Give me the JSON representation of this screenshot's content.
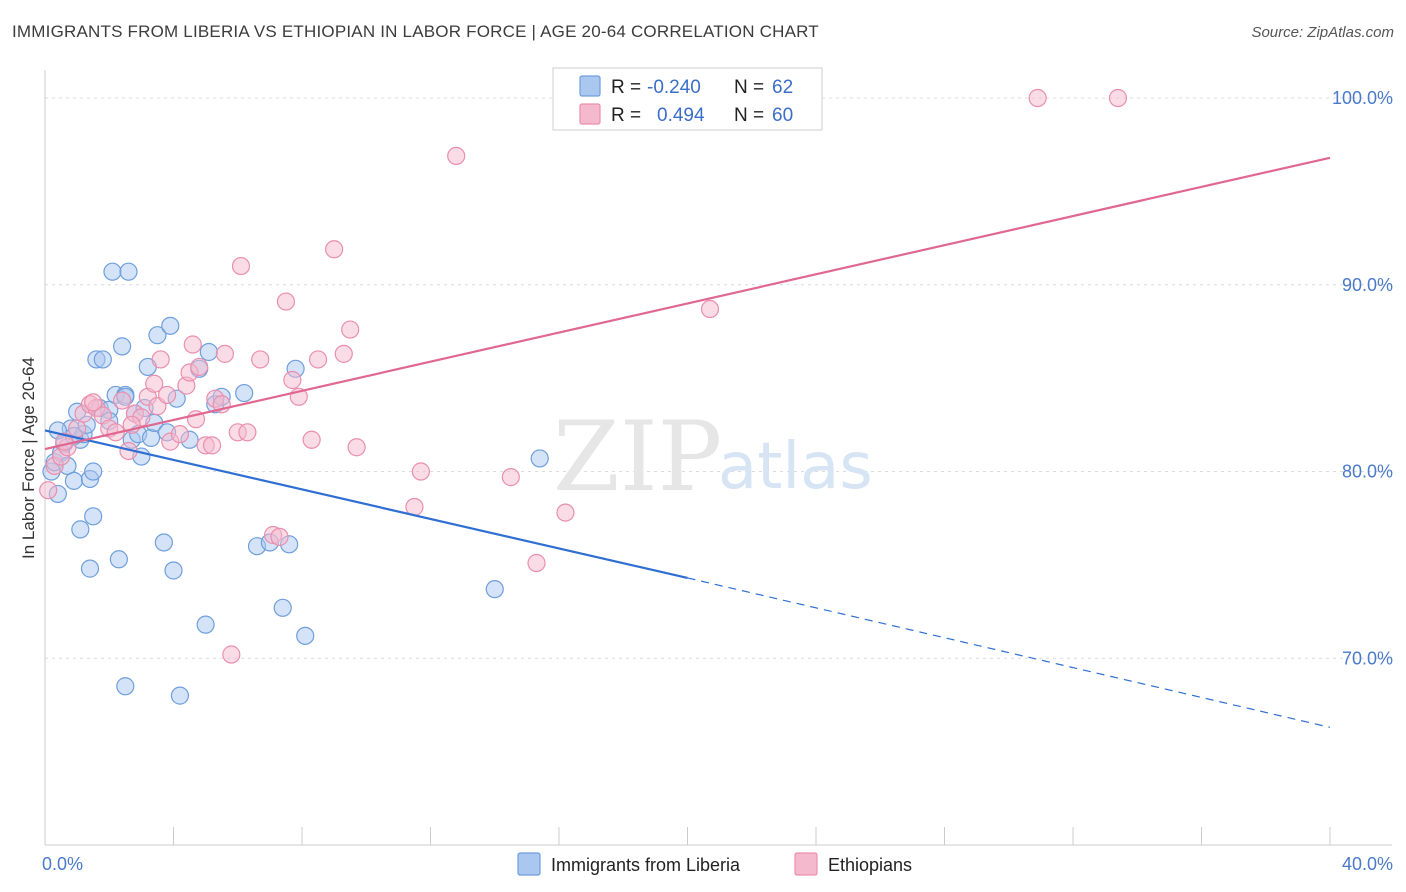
{
  "chart_data": {
    "type": "scatter",
    "title": "IMMIGRANTS FROM LIBERIA VS ETHIOPIAN IN LABOR FORCE | AGE 20-64 CORRELATION CHART",
    "source": "Source: ZipAtlas.com",
    "xlabel": "",
    "ylabel": "In Labor Force | Age 20-64",
    "xlim": [
      0,
      40
    ],
    "ylim": [
      60,
      101.5
    ],
    "x_tick_labels": [
      {
        "value": 0,
        "label": "0.0%"
      },
      {
        "value": 40,
        "label": "40.0%"
      }
    ],
    "y_tick_labels": [
      {
        "value": 70,
        "label": "70.0%"
      },
      {
        "value": 80,
        "label": "80.0%"
      },
      {
        "value": 90,
        "label": "90.0%"
      },
      {
        "value": 100,
        "label": "100.0%"
      }
    ],
    "watermark": {
      "part1": "ZIP",
      "part2": "atlas"
    },
    "legend": [
      {
        "name": "Immigrants from Liberia",
        "r_label": "R =",
        "r": "-0.240",
        "n_label": "N =",
        "n": "62"
      },
      {
        "name": "Ethiopians",
        "r_label": "R =",
        "r": "0.494",
        "n_label": "N =",
        "n": "60"
      }
    ],
    "colors": {
      "series1_fill": "#a9c7ef",
      "series1_stroke": "#6f9fdc",
      "series1_line": "#2f6fd2",
      "series2_fill": "#f5b9cd",
      "series2_stroke": "#e98fae",
      "series2_line": "#e06890",
      "grid": "#dcdcdc",
      "axis": "#cccccc"
    },
    "series": [
      {
        "name": "Immigrants from Liberia",
        "trend": {
          "x0": 0,
          "y0": 82.2,
          "x1": 20,
          "y1": 74.3,
          "x_dash_end": 40,
          "y_dash_end": 66.3
        },
        "points": [
          [
            0.2,
            80.0
          ],
          [
            0.3,
            80.5
          ],
          [
            0.4,
            78.8
          ],
          [
            0.5,
            81.0
          ],
          [
            0.6,
            81.5
          ],
          [
            0.7,
            80.3
          ],
          [
            0.8,
            82.3
          ],
          [
            0.9,
            79.5
          ],
          [
            1.0,
            83.2
          ],
          [
            1.1,
            81.7
          ],
          [
            1.2,
            82.0
          ],
          [
            1.3,
            82.5
          ],
          [
            1.4,
            79.6
          ],
          [
            1.5,
            80.0
          ],
          [
            1.6,
            86.0
          ],
          [
            1.7,
            83.4
          ],
          [
            1.8,
            86.0
          ],
          [
            2.0,
            83.3
          ],
          [
            2.1,
            90.7
          ],
          [
            2.2,
            84.1
          ],
          [
            2.3,
            75.3
          ],
          [
            2.4,
            86.7
          ],
          [
            2.5,
            84.1
          ],
          [
            2.6,
            90.7
          ],
          [
            2.7,
            81.7
          ],
          [
            2.8,
            83.1
          ],
          [
            2.9,
            82.0
          ],
          [
            3.0,
            80.8
          ],
          [
            3.1,
            83.4
          ],
          [
            3.2,
            85.6
          ],
          [
            3.3,
            81.8
          ],
          [
            3.4,
            82.6
          ],
          [
            3.5,
            87.3
          ],
          [
            3.7,
            76.2
          ],
          [
            3.8,
            82.1
          ],
          [
            3.9,
            87.8
          ],
          [
            4.0,
            74.7
          ],
          [
            4.1,
            83.9
          ],
          [
            4.2,
            68.0
          ],
          [
            4.5,
            81.7
          ],
          [
            4.8,
            85.5
          ],
          [
            5.0,
            71.8
          ],
          [
            5.1,
            86.4
          ],
          [
            5.3,
            83.6
          ],
          [
            5.5,
            84.0
          ],
          [
            6.2,
            84.2
          ],
          [
            6.6,
            76.0
          ],
          [
            7.0,
            76.2
          ],
          [
            7.4,
            72.7
          ],
          [
            7.6,
            76.1
          ],
          [
            7.8,
            85.5
          ],
          [
            8.1,
            71.2
          ],
          [
            1.4,
            74.8
          ],
          [
            2.5,
            68.5
          ],
          [
            0.4,
            82.2
          ],
          [
            0.9,
            81.9
          ],
          [
            1.5,
            77.6
          ],
          [
            2.0,
            82.7
          ],
          [
            2.5,
            84.0
          ],
          [
            14.0,
            73.7
          ],
          [
            15.4,
            80.7
          ],
          [
            1.1,
            76.9
          ]
        ]
      },
      {
        "name": "Ethiopians",
        "trend": {
          "x0": 0,
          "y0": 81.2,
          "x1": 40,
          "y1": 96.8
        },
        "points": [
          [
            0.1,
            79.0
          ],
          [
            0.3,
            80.3
          ],
          [
            0.5,
            80.8
          ],
          [
            0.7,
            81.3
          ],
          [
            1.0,
            82.3
          ],
          [
            1.2,
            83.1
          ],
          [
            1.4,
            83.6
          ],
          [
            1.6,
            83.4
          ],
          [
            1.8,
            83.0
          ],
          [
            2.0,
            82.3
          ],
          [
            2.2,
            82.1
          ],
          [
            2.4,
            83.8
          ],
          [
            2.6,
            81.1
          ],
          [
            2.8,
            83.1
          ],
          [
            3.0,
            82.9
          ],
          [
            3.2,
            84.0
          ],
          [
            3.4,
            84.7
          ],
          [
            3.5,
            83.5
          ],
          [
            3.6,
            86.0
          ],
          [
            3.8,
            84.1
          ],
          [
            3.9,
            81.6
          ],
          [
            4.2,
            82.0
          ],
          [
            4.4,
            84.6
          ],
          [
            4.5,
            85.3
          ],
          [
            4.6,
            86.8
          ],
          [
            4.7,
            82.8
          ],
          [
            4.8,
            85.6
          ],
          [
            5.0,
            81.4
          ],
          [
            5.2,
            81.4
          ],
          [
            5.3,
            83.9
          ],
          [
            5.5,
            83.6
          ],
          [
            5.6,
            86.3
          ],
          [
            5.8,
            70.2
          ],
          [
            6.0,
            82.1
          ],
          [
            6.1,
            91.0
          ],
          [
            6.3,
            82.1
          ],
          [
            6.7,
            86.0
          ],
          [
            7.1,
            76.6
          ],
          [
            7.3,
            76.5
          ],
          [
            7.5,
            89.1
          ],
          [
            7.7,
            84.9
          ],
          [
            7.9,
            84.0
          ],
          [
            8.3,
            81.7
          ],
          [
            8.5,
            86.0
          ],
          [
            9.0,
            91.9
          ],
          [
            9.3,
            86.3
          ],
          [
            9.5,
            87.6
          ],
          [
            9.7,
            81.3
          ],
          [
            11.5,
            78.1
          ],
          [
            11.7,
            80.0
          ],
          [
            12.8,
            96.9
          ],
          [
            14.5,
            79.7
          ],
          [
            15.3,
            75.1
          ],
          [
            16.2,
            77.8
          ],
          [
            20.7,
            88.7
          ],
          [
            30.9,
            100.0
          ],
          [
            33.4,
            100.0
          ],
          [
            1.5,
            83.7
          ],
          [
            2.7,
            82.5
          ],
          [
            0.6,
            81.6
          ]
        ]
      }
    ]
  }
}
